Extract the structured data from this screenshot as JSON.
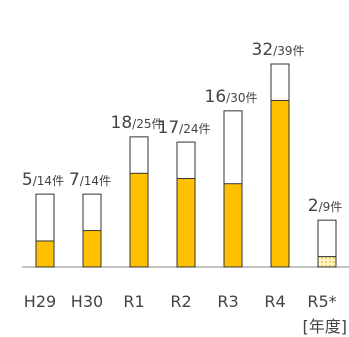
{
  "chart_data": {
    "type": "bar",
    "categories": [
      "H29",
      "H30",
      "R1",
      "R2",
      "R3",
      "R4",
      "R5*"
    ],
    "values": [
      5,
      7,
      18,
      17,
      16,
      32,
      2
    ],
    "totals": [
      14,
      14,
      25,
      24,
      30,
      39,
      9
    ],
    "total_labels": [
      "/14件",
      "/14件",
      "/25件",
      "/24件",
      "/30件",
      "/39件",
      "/9件"
    ],
    "color": "#ffc000",
    "unit_label": "[年度]"
  }
}
